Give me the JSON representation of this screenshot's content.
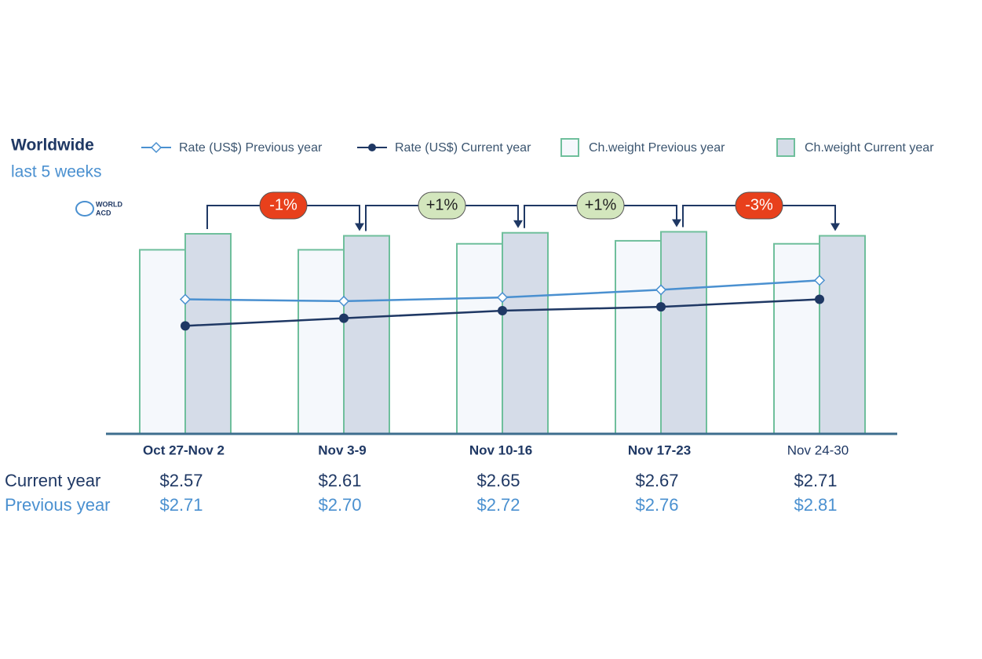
{
  "chart_data": {
    "type": "bar",
    "title": "Worldwide",
    "subtitle": "last 5 weeks",
    "logo": [
      "WORLD",
      "ACD"
    ],
    "categories": [
      "Oct 27-Nov 2",
      "Nov 3-9",
      "Nov 10-16",
      "Nov 17-23",
      "Nov 24-30"
    ],
    "ylim": [
      0,
      100
    ],
    "y2lim": [
      2.0,
      3.3
    ],
    "series": [
      {
        "name": "Ch.weight Previous year",
        "type": "bar",
        "color": "#f5f8fc",
        "stroke": "#6fbf9c",
        "values": [
          92,
          92,
          95,
          96.5,
          95
        ]
      },
      {
        "name": "Ch.weight Current year",
        "type": "bar",
        "color": "#d5dce8",
        "stroke": "#6fbf9c",
        "values": [
          100,
          99,
          100.5,
          101,
          99
        ]
      },
      {
        "name": "Rate (US$) Previous year",
        "type": "line",
        "axis": "y2",
        "marker": "diamond",
        "color": "#4a90d0",
        "row_label": "Previous year",
        "values": [
          2.71,
          2.7,
          2.72,
          2.76,
          2.81
        ],
        "value_labels": [
          "$2.71",
          "$2.70",
          "$2.72",
          "$2.76",
          "$2.81"
        ]
      },
      {
        "name": "Rate (US$) Current year",
        "type": "line",
        "axis": "y2",
        "marker": "circle",
        "color": "#1f3864",
        "row_label": "Current year",
        "values": [
          2.57,
          2.61,
          2.65,
          2.67,
          2.71
        ],
        "value_labels": [
          "$2.57",
          "$2.61",
          "$2.65",
          "$2.67",
          "$2.71"
        ]
      }
    ],
    "changes": [
      {
        "label": "-1%",
        "color": "#e8401c"
      },
      {
        "label": "+1%",
        "color": "#d3e6bd"
      },
      {
        "label": "+1%",
        "color": "#d3e6bd"
      },
      {
        "label": "-3%",
        "color": "#e8401c"
      }
    ]
  }
}
